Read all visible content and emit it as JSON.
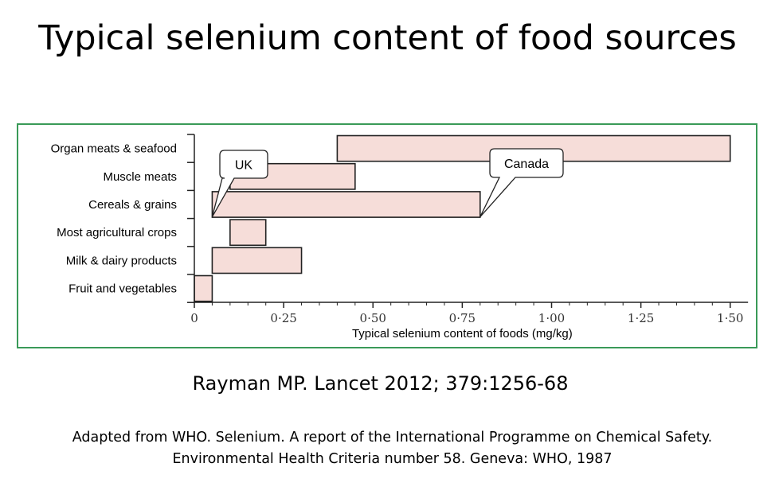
{
  "title": "Typical selenium content of food sources",
  "chart_data": {
    "type": "bar",
    "subtype": "floating-range",
    "categories": [
      "Organ meats & seafood",
      "Muscle meats",
      "Cereals & grains",
      "Most agricultural crops",
      "Milk & dairy products",
      "Fruit and vegetables"
    ],
    "ranges": [
      [
        0.4,
        1.5
      ],
      [
        0.1,
        0.45
      ],
      [
        0.05,
        0.8
      ],
      [
        0.1,
        0.2
      ],
      [
        0.05,
        0.3
      ],
      [
        0.0,
        0.05
      ]
    ],
    "xlabel": "Typical selenium content of foods (mg/kg)",
    "xlim": [
      0,
      1.55
    ],
    "xticks": [
      0,
      0.25,
      0.5,
      0.75,
      1.0,
      1.25,
      1.5
    ],
    "xtick_labels": [
      "0",
      "0·25",
      "0·50",
      "0·75",
      "1·00",
      "1·25",
      "1·50"
    ],
    "annotations": [
      {
        "text": "UK",
        "category": "Cereals & grains",
        "value": 0.05
      },
      {
        "text": "Canada",
        "category": "Cereals & grains",
        "value": 0.8
      }
    ],
    "bar_fill": "#f6ddd9",
    "bar_stroke": "#222222",
    "frame_color": "#3a9a58",
    "grid": false
  },
  "citation": "Rayman MP. Lancet 2012; 379:1256-68",
  "source_line1": "Adapted from WHO. Selenium. A report of the International Programme on Chemical Safety.",
  "source_line2": "Environmental Health Criteria number 58. Geneva: WHO, 1987"
}
